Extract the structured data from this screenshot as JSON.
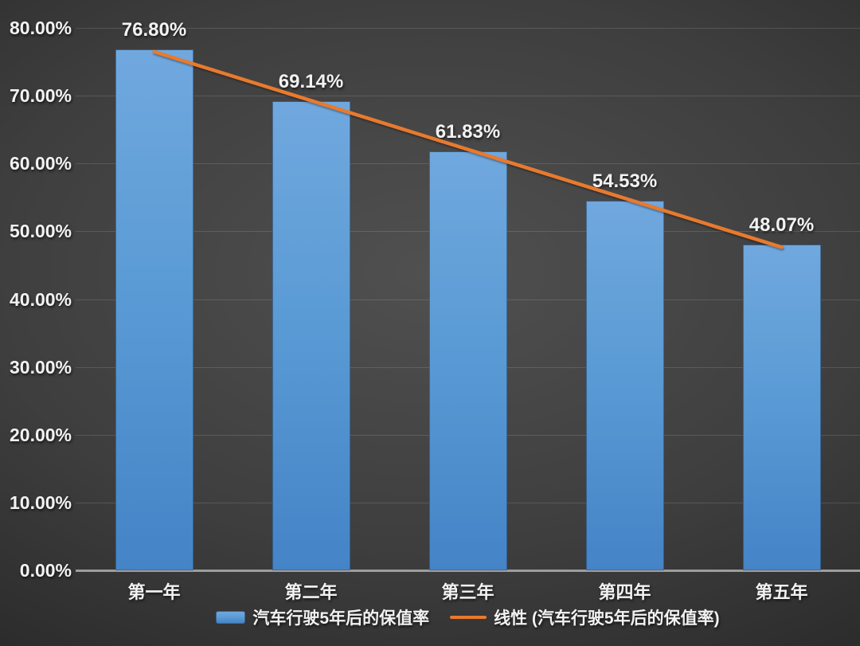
{
  "chart_data": {
    "type": "bar",
    "title": "",
    "categories": [
      "第一年",
      "第二年",
      "第三年",
      "第四年",
      "第五年"
    ],
    "series": [
      {
        "name": "汽车行驶5年后的保值率",
        "type": "bar",
        "values": [
          76.8,
          69.14,
          61.83,
          54.53,
          48.07
        ],
        "data_labels": [
          "76.80%",
          "69.14%",
          "61.83%",
          "54.53%",
          "48.07%"
        ],
        "color": "#5b9bd5"
      },
      {
        "name": "线性 (汽车行驶5年后的保值率)",
        "type": "linear-trendline",
        "endpoints": [
          76.49,
          47.66
        ],
        "color": "#e87a2e"
      }
    ],
    "ylim": [
      0,
      80
    ],
    "ytick_step": 10,
    "ytick_labels": [
      "0.00%",
      "10.00%",
      "20.00%",
      "30.00%",
      "40.00%",
      "50.00%",
      "60.00%",
      "70.00%",
      "80.00%"
    ],
    "grid": true,
    "legend_position": "bottom"
  },
  "colors": {
    "background_center": "#505050",
    "background_edge": "#212121",
    "bar_top": "#70a8de",
    "bar_bottom": "#4484c7",
    "trendline": "#e87a2e",
    "axis_line": "#9d9d9d",
    "gridline": "rgba(255,255,255,0.13)",
    "text": "#f2f2f2"
  }
}
